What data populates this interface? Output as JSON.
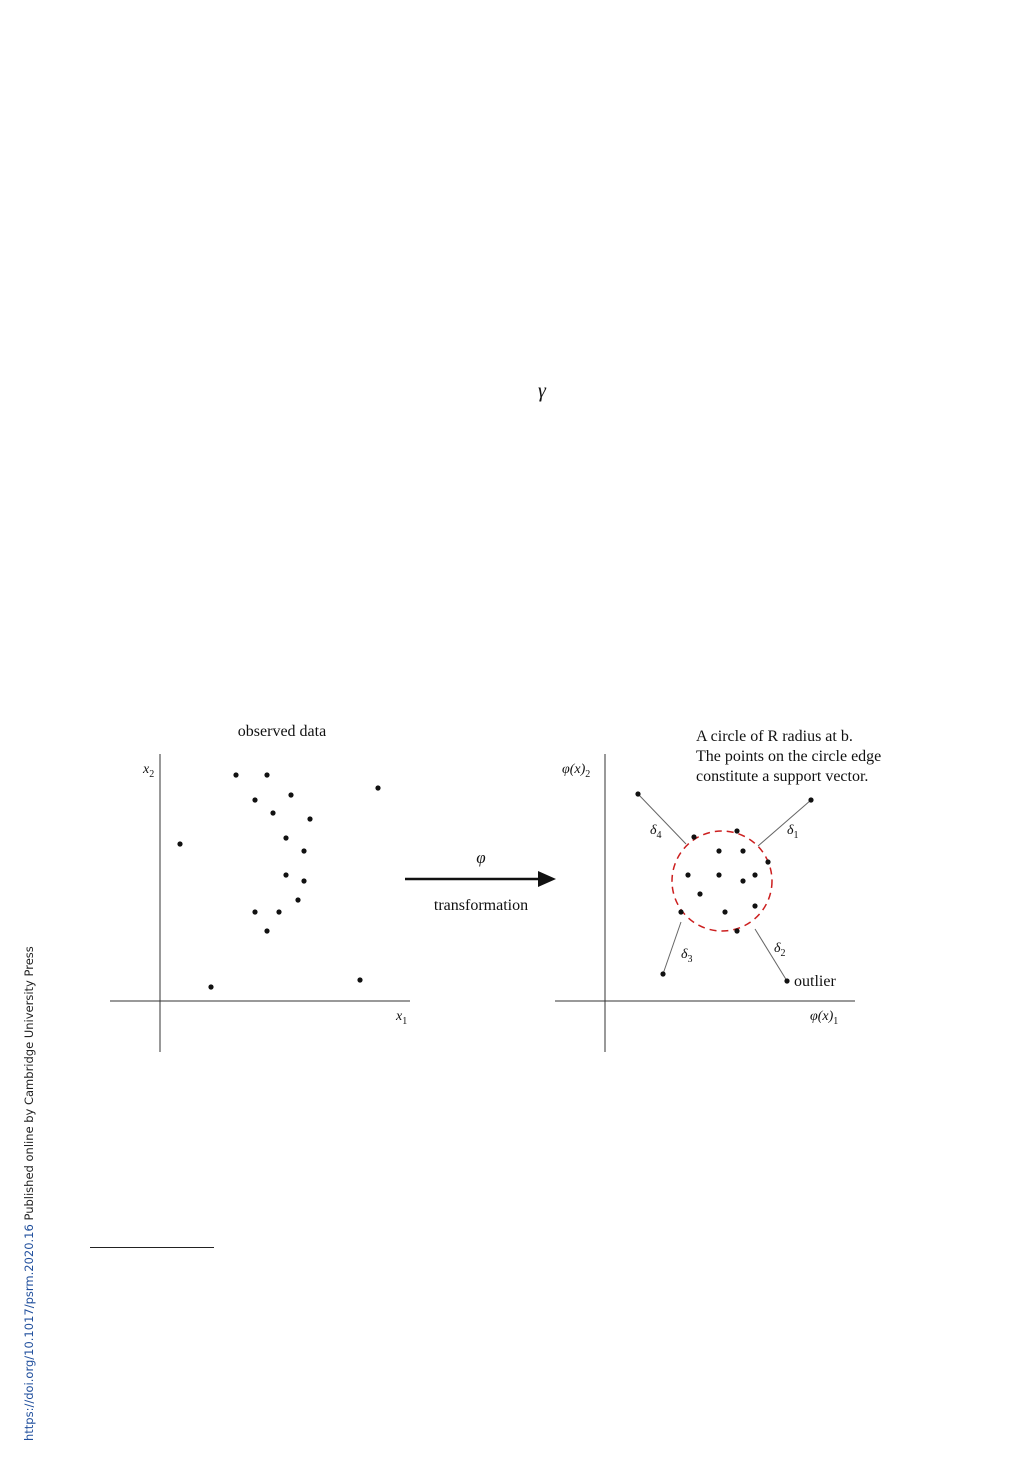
{
  "gamma_symbol": "γ",
  "left_panel": {
    "title": "observed data",
    "y_axis_label": "x2",
    "x_axis_label": "x1"
  },
  "arrow": {
    "symbol": "φ",
    "label": "transformation"
  },
  "right_panel": {
    "annotation_lines": [
      "A circle of R radius at b.",
      "The points on the circle edge",
      "constitute a support vector."
    ],
    "y_axis_label": "φ(x)2",
    "x_axis_label": "φ(x)1",
    "deltas": [
      "δ1",
      "δ2",
      "δ3",
      "δ4"
    ],
    "outlier_label": "outlier",
    "circle_color": "#cc1f1f"
  },
  "sidebar": {
    "link_text": "https://doi.org/10.1017/psrm.2020.16",
    "publisher_text": " Published online by Cambridge University Press"
  }
}
